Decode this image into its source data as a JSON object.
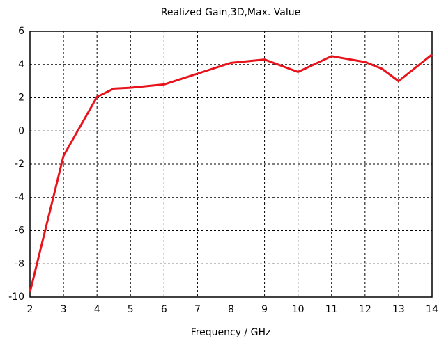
{
  "chart_data": {
    "type": "line",
    "title": "Realized Gain,3D,Max. Value",
    "x_label": "Frequency / GHz",
    "x": [
      2,
      3,
      4,
      4.5,
      5,
      6,
      7,
      8,
      9,
      10,
      11,
      12,
      12.5,
      13,
      14
    ],
    "series": [
      {
        "color": "#e8141c",
        "values": [
          -9.7,
          -1.5,
          2.05,
          2.55,
          2.6,
          2.8,
          3.45,
          4.1,
          4.3,
          3.55,
          4.5,
          4.15,
          3.75,
          3.0,
          4.6
        ]
      }
    ],
    "xlim": [
      2,
      14
    ],
    "xticks": [
      2,
      3,
      4,
      5,
      6,
      7,
      8,
      9,
      10,
      11,
      12,
      13,
      14
    ],
    "ylim": [
      -10,
      6
    ],
    "yticks": [
      -10,
      -8,
      -6,
      -4,
      -2,
      0,
      2,
      4,
      6
    ],
    "grid": true
  }
}
